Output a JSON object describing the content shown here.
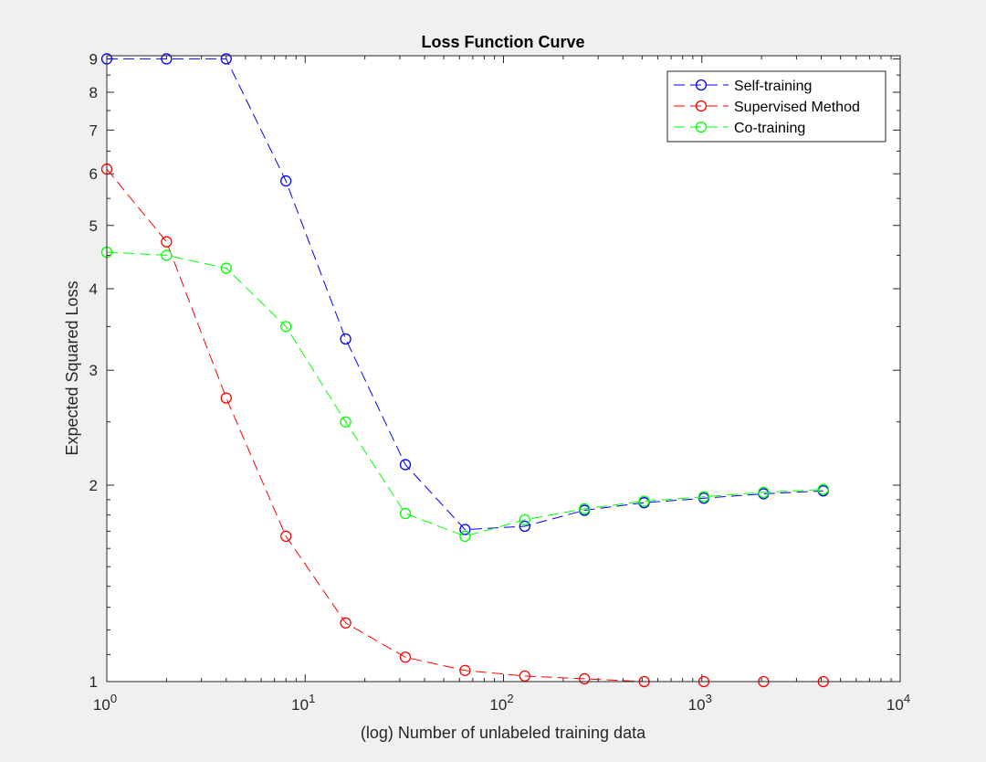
{
  "chart_data": {
    "type": "line",
    "title": "Loss Function Curve",
    "xlabel": "(log) Number of unlabeled training data",
    "ylabel": "Expected Squared Loss",
    "xscale": "log",
    "yscale": "log",
    "xlim": [
      1,
      10000
    ],
    "ylim": [
      1,
      9.1
    ],
    "x": [
      1,
      2,
      4,
      8,
      16,
      32,
      64,
      128,
      256,
      512,
      1024,
      2048,
      4096
    ],
    "xticks": [
      {
        "value": 1,
        "base": "10",
        "exp": "0"
      },
      {
        "value": 10,
        "base": "10",
        "exp": "1"
      },
      {
        "value": 100,
        "base": "10",
        "exp": "2"
      },
      {
        "value": 1000,
        "base": "10",
        "exp": "3"
      },
      {
        "value": 10000,
        "base": "10",
        "exp": "4"
      }
    ],
    "yticks": [
      {
        "value": 1,
        "label": "1"
      },
      {
        "value": 2,
        "label": "2"
      },
      {
        "value": 3,
        "label": "3"
      },
      {
        "value": 4,
        "label": "4"
      },
      {
        "value": 5,
        "label": "5"
      },
      {
        "value": 6,
        "label": "6"
      },
      {
        "value": 7,
        "label": "7"
      },
      {
        "value": 8,
        "label": "8"
      },
      {
        "value": 9,
        "label": "9"
      }
    ],
    "series": [
      {
        "name": "Self-training",
        "color": "#0000ff",
        "linestyle": "dashed",
        "marker": "circle",
        "values": [
          9.0,
          9.0,
          9.0,
          5.85,
          3.35,
          2.15,
          1.71,
          1.73,
          1.83,
          1.88,
          1.91,
          1.94,
          1.96
        ]
      },
      {
        "name": "Supervised Method",
        "color": "#ff0000",
        "linestyle": "dashed",
        "marker": "circle",
        "values": [
          6.1,
          4.72,
          2.72,
          1.67,
          1.23,
          1.09,
          1.04,
          1.02,
          1.01,
          1.0,
          1.0,
          1.0,
          1.0
        ]
      },
      {
        "name": "Co-training",
        "color": "#00ff00",
        "linestyle": "dashed",
        "marker": "circle",
        "values": [
          4.55,
          4.5,
          4.3,
          3.5,
          2.5,
          1.81,
          1.67,
          1.77,
          1.84,
          1.89,
          1.92,
          1.95,
          1.97
        ]
      }
    ],
    "legend": "top-right",
    "grid": false,
    "minor_ticks": true
  }
}
